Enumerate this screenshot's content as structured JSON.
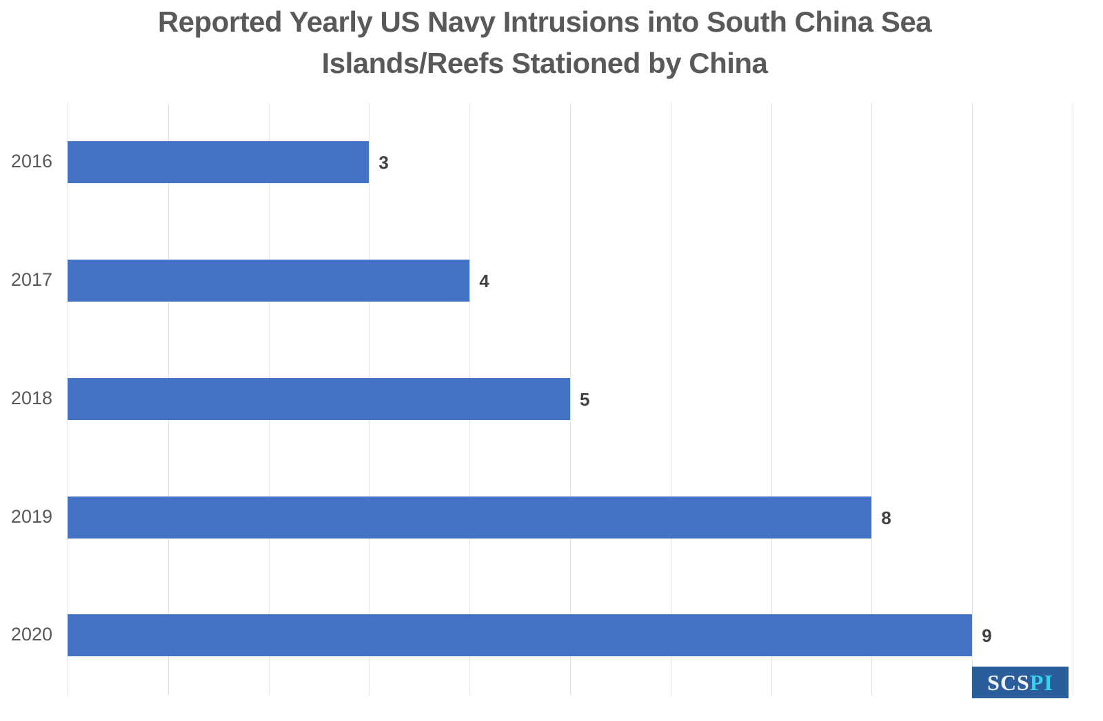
{
  "title": {
    "line1": "Reported Yearly US Navy Intrusions into South China Sea",
    "line2": "Islands/Reefs Stationed by China"
  },
  "logo": {
    "part1": "SCS",
    "part2": "PI"
  },
  "colors": {
    "bar": "#4472c4",
    "grid": "#e3e3e3",
    "text": "#595959",
    "logo_bg": "#2a5d9c",
    "logo_accent": "#33d6ec"
  },
  "chart_data": {
    "type": "bar",
    "orientation": "horizontal",
    "title": "Reported Yearly US Navy Intrusions into South China Sea Islands/Reefs Stationed by China",
    "categories": [
      "2016",
      "2017",
      "2018",
      "2019",
      "2020"
    ],
    "values": [
      3,
      4,
      5,
      8,
      9
    ],
    "data_labels": [
      "3",
      "4",
      "5",
      "8",
      "9"
    ],
    "xlabel": "",
    "ylabel": "",
    "xlim": [
      0,
      10
    ],
    "grid": true,
    "gridline_step": 1,
    "x_tick_labels_visible": false,
    "legend": null,
    "annotations": [
      "SCSPI"
    ]
  }
}
